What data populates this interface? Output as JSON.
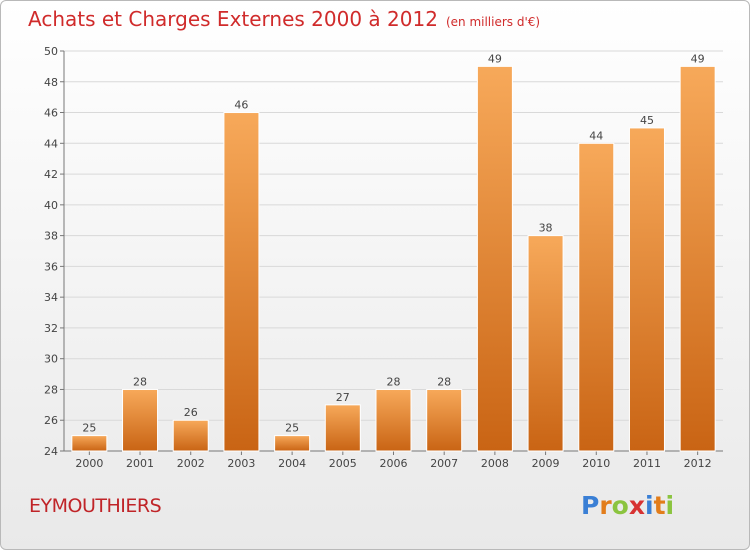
{
  "title": "Achats et Charges Externes 2000 à 2012",
  "unit_note": "(en milliers d'€)",
  "commune": "EYMOUTHIERS",
  "logo": {
    "text": "Proxiti",
    "letters": [
      {
        "ch": "P",
        "color": "#3a7fd5"
      },
      {
        "ch": "r",
        "color": "#e27d1b"
      },
      {
        "ch": "o",
        "color": "#8bc43f"
      },
      {
        "ch": "x",
        "color": "#d73232"
      },
      {
        "ch": "i",
        "color": "#3a7fd5"
      },
      {
        "ch": "t",
        "color": "#e27d1b"
      },
      {
        "ch": "i",
        "color": "#8bc43f"
      }
    ]
  },
  "colors": {
    "bar_light": "#f7a95a",
    "bar_dark": "#c96414",
    "title": "#d02b2b",
    "grid": "#d9d9d9"
  },
  "chart_data": {
    "type": "bar",
    "categories": [
      "2000",
      "2001",
      "2002",
      "2003",
      "2004",
      "2005",
      "2006",
      "2007",
      "2008",
      "2009",
      "2010",
      "2011",
      "2012"
    ],
    "values": [
      25,
      28,
      26,
      46,
      25,
      27,
      28,
      28,
      49,
      38,
      44,
      45,
      49
    ],
    "ylim": [
      24,
      50
    ],
    "yticks": [
      24,
      26,
      28,
      30,
      32,
      34,
      36,
      38,
      40,
      42,
      44,
      46,
      48,
      50
    ],
    "grid": true,
    "data_labels": true
  }
}
